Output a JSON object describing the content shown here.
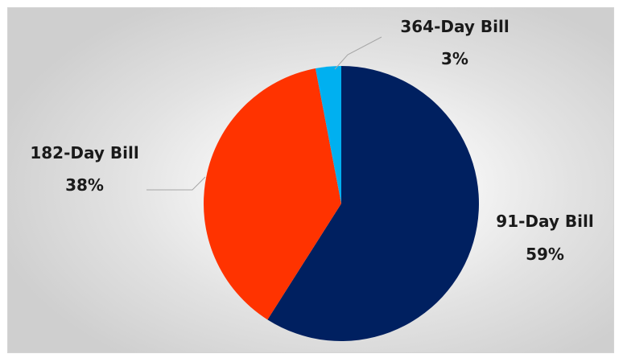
{
  "chart_data": {
    "type": "pie",
    "slices": [
      {
        "label": "91-Day Bill",
        "value": 59,
        "value_label": "59%",
        "color": "#002060"
      },
      {
        "label": "182-Day Bill",
        "value": 38,
        "value_label": "38%",
        "color": "#ff3300"
      },
      {
        "label": "364-Day Bill",
        "value": 3,
        "value_label": "3%",
        "color": "#00b0f0"
      }
    ],
    "start": "12 o'clock",
    "direction": "clockwise",
    "legend": "none",
    "data_labels": "outside with leader lines"
  }
}
